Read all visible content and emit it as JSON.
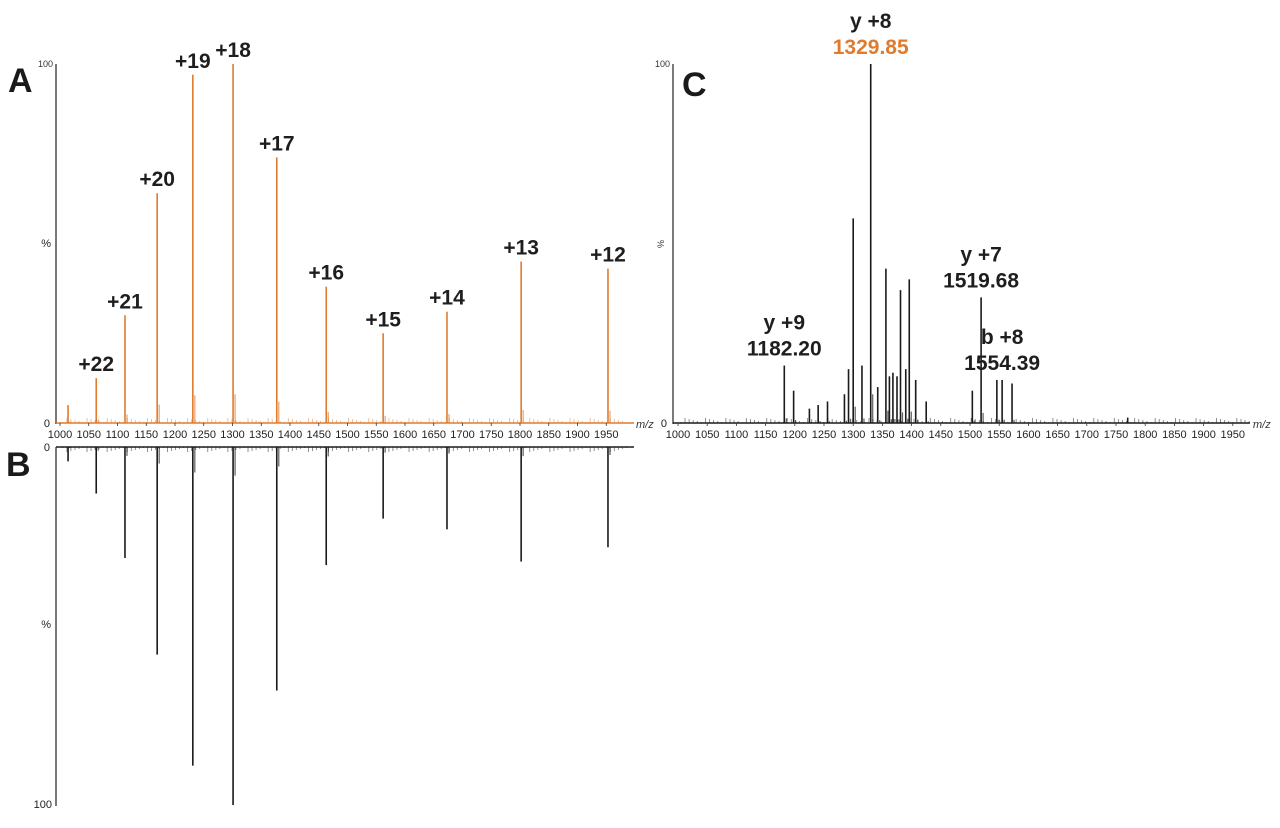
{
  "panels": {
    "A": {
      "letter": "A",
      "y_top": "100",
      "y_zero": "0",
      "y_label": "%",
      "x_label": "m/z"
    },
    "B": {
      "letter": "B",
      "y_top": "0",
      "y_bottom": "100",
      "y_label": "%"
    },
    "C": {
      "letter": "C",
      "y_top": "100",
      "y_zero": "0",
      "y_label": "%",
      "x_label": "m/z"
    }
  },
  "x_ticks": [
    "1000",
    "1050",
    "1100",
    "1150",
    "1200",
    "1250",
    "1300",
    "1350",
    "1400",
    "1450",
    "1500",
    "1550",
    "1600",
    "1650",
    "1700",
    "1750",
    "1800",
    "1850",
    "1900",
    "1950"
  ],
  "colors": {
    "orange": "#e07b2e",
    "black": "#1a1a1a"
  },
  "chart_data": [
    {
      "type": "bar",
      "panel": "A",
      "title": "",
      "xlabel": "m/z",
      "ylabel": "%",
      "xlim": [
        1000,
        2000
      ],
      "ylim": [
        0,
        100
      ],
      "color": "#e07b2e",
      "x": [
        1014,
        1063,
        1113,
        1169,
        1231,
        1301,
        1377,
        1463,
        1562,
        1673,
        1802,
        1953
      ],
      "values": [
        5,
        12.5,
        30,
        64,
        97,
        100,
        74,
        38,
        25,
        31,
        45,
        43
      ],
      "annotations": [
        {
          "label": "+22",
          "x": 1063
        },
        {
          "label": "+21",
          "x": 1113
        },
        {
          "label": "+20",
          "x": 1169
        },
        {
          "label": "+19",
          "x": 1231
        },
        {
          "label": "+18",
          "x": 1301
        },
        {
          "label": "+17",
          "x": 1377
        },
        {
          "label": "+16",
          "x": 1463
        },
        {
          "label": "+15",
          "x": 1562
        },
        {
          "label": "+14",
          "x": 1673
        },
        {
          "label": "+13",
          "x": 1802
        },
        {
          "label": "+12",
          "x": 1953
        }
      ]
    },
    {
      "type": "bar",
      "panel": "B",
      "title": "",
      "xlabel": "m/z",
      "ylabel": "%",
      "xlim": [
        1000,
        2000
      ],
      "ylim": [
        0,
        100
      ],
      "inverted": true,
      "color": "#1a1a1a",
      "x": [
        1014,
        1063,
        1113,
        1169,
        1231,
        1301,
        1377,
        1463,
        1562,
        1673,
        1802,
        1953
      ],
      "values": [
        4,
        13,
        31,
        58,
        89,
        100,
        68,
        33,
        20,
        23,
        32,
        28
      ]
    },
    {
      "type": "bar",
      "panel": "C",
      "title": "",
      "xlabel": "m/z",
      "ylabel": "%",
      "xlim": [
        1000,
        2000
      ],
      "ylim": [
        0,
        100
      ],
      "color": "#1a1a1a",
      "x": [
        1182,
        1198,
        1225,
        1240,
        1256,
        1285,
        1292,
        1300,
        1315,
        1330,
        1342,
        1356,
        1362,
        1368,
        1375,
        1381,
        1390,
        1396,
        1407,
        1425,
        1504,
        1519,
        1546,
        1555,
        1572,
        1770
      ],
      "values": [
        16,
        9,
        4,
        5,
        6,
        8,
        15,
        57,
        16,
        100,
        10,
        43,
        13,
        14,
        13,
        37,
        15,
        40,
        12,
        6,
        9,
        35,
        12,
        12,
        11,
        1.5
      ],
      "annotations": [
        {
          "label": "y +9",
          "value": "1182.20",
          "x": 1182
        },
        {
          "label": "y +8",
          "value": "1329.85",
          "x": 1330,
          "highlight": "#e07b2e"
        },
        {
          "label": "y +7",
          "value": "1519.68",
          "x": 1519
        },
        {
          "label": "b +8",
          "value": "1554.39",
          "x": 1555
        }
      ]
    }
  ]
}
